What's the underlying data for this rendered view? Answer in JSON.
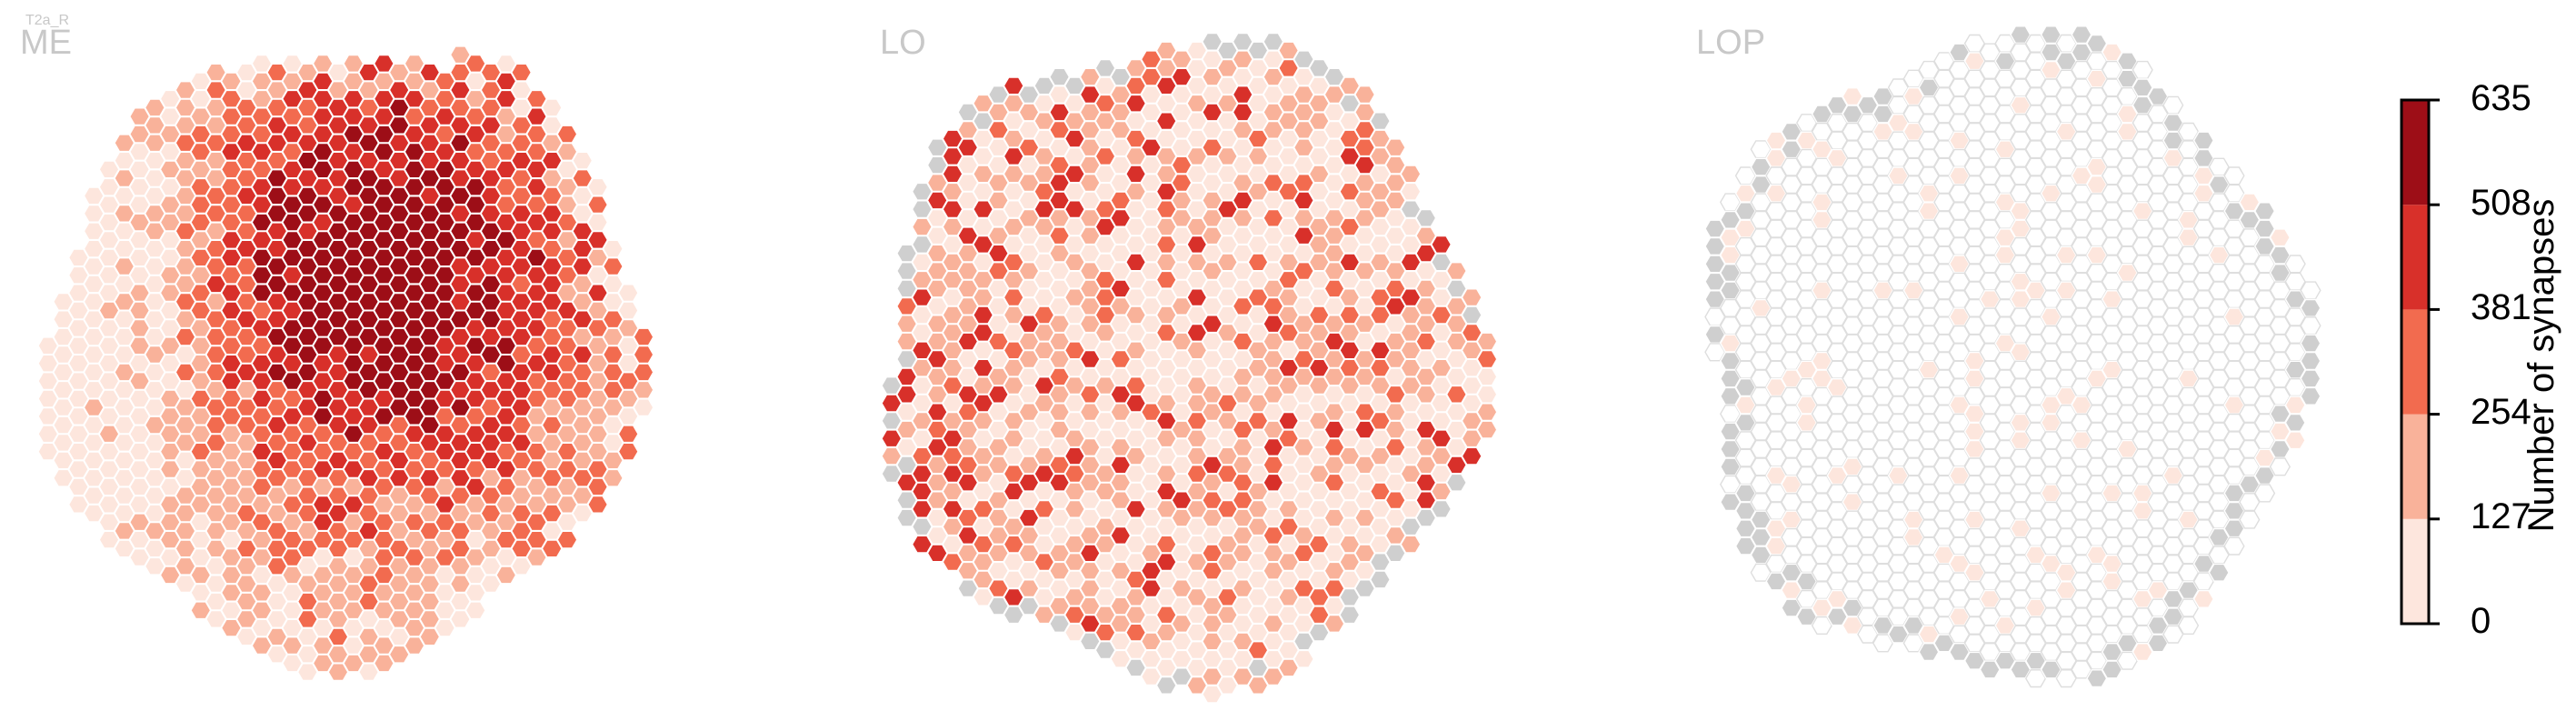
{
  "caption": "T2a_R",
  "panels": [
    {
      "key": "me",
      "label": "ME",
      "pattern": "me"
    },
    {
      "key": "lo",
      "label": "LO",
      "pattern": "lo"
    },
    {
      "key": "lop",
      "label": "LOP",
      "pattern": "lop"
    }
  ],
  "colorbar": {
    "title": "Number of synapses",
    "ticks": [
      "635",
      "508",
      "381",
      "254",
      "127",
      "0"
    ],
    "bins": [
      {
        "min": 0,
        "max": 127,
        "color": "#fde6dd"
      },
      {
        "min": 127,
        "max": 254,
        "color": "#f9b29a"
      },
      {
        "min": 254,
        "max": 381,
        "color": "#f26b4f"
      },
      {
        "min": 381,
        "max": 508,
        "color": "#d8302a"
      },
      {
        "min": 508,
        "max": 635,
        "color": "#9d0e17"
      }
    ],
    "no_data_color": "#cfcfcf"
  },
  "chart_data": {
    "type": "heatmap",
    "title": "",
    "value_label": "Number of synapses",
    "value_range": [
      0,
      635
    ],
    "panels": [
      "ME",
      "LO",
      "LOP"
    ],
    "per_panel_summary": [
      {
        "panel": "ME",
        "typical_range": [
          127,
          635
        ],
        "peak_bin": [
          508,
          635
        ]
      },
      {
        "panel": "LO",
        "typical_range": [
          0,
          381
        ],
        "peak_bin": [
          381,
          508
        ]
      },
      {
        "panel": "LOP",
        "typical_range": [
          0,
          127
        ],
        "peak_bin": [
          0,
          127
        ]
      }
    ]
  }
}
